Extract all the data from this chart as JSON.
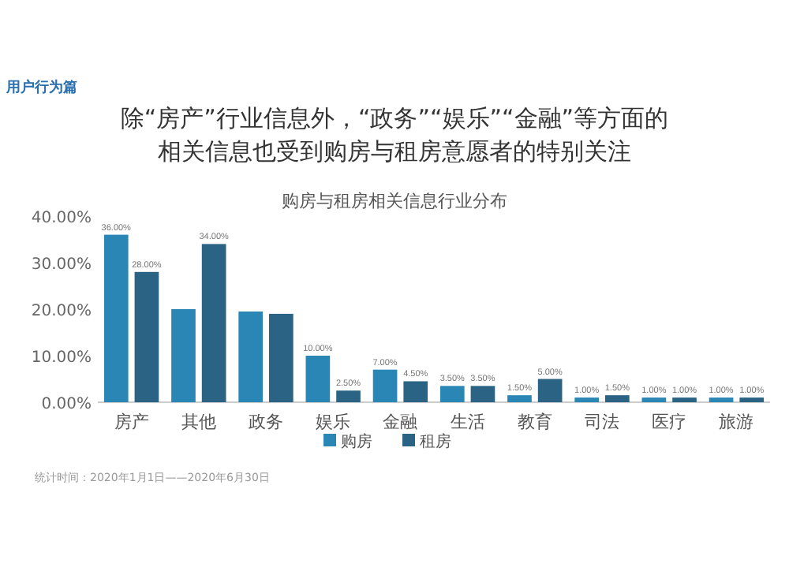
{
  "chart_data": {
    "type": "bar",
    "title": "除“房产”行业信息外，“政务”“娱乐”“金融”等方面的相关信息也受到购房与租房意愿者的特别关注",
    "subtitle": "购房与租房相关信息行业分布",
    "annotations": [
      "用户行为篇",
      "统计时间：2020年1月1日——2020年6月30日"
    ],
    "categories": [
      "房产",
      "其他",
      "政务",
      "娱乐",
      "金融",
      "生活",
      "教育",
      "司法",
      "医疗",
      "旅游"
    ],
    "series": [
      {
        "name": "购房",
        "color": "#2a86b5",
        "values": [
          36,
          20,
          19.5,
          10,
          7,
          3.5,
          1.5,
          1,
          1,
          1
        ],
        "value_labels": [
          "36.00%",
          null,
          null,
          "10.00%",
          "7.00%",
          "3.50%",
          "1.50%",
          "1.00%",
          "1.00%",
          "1.00%"
        ]
      },
      {
        "name": "租房",
        "color": "#2b6384",
        "values": [
          28,
          34,
          19,
          2.5,
          4.5,
          3.5,
          5,
          1.5,
          1,
          1
        ],
        "value_labels": [
          "28.00%",
          "34.00%",
          null,
          "2.50%",
          "4.50%",
          "3.50%",
          "5.00%",
          "1.50%",
          "1.00%",
          "1.00%"
        ]
      }
    ],
    "ylim": [
      0,
      40
    ],
    "yticks": [
      {
        "value": 0,
        "label": "0.00%"
      },
      {
        "value": 10,
        "label": "10.00%"
      },
      {
        "value": 20,
        "label": "20.00%"
      },
      {
        "value": 30,
        "label": "30.00%"
      },
      {
        "value": 40,
        "label": "40.00%"
      }
    ],
    "grid": false,
    "legend": "bottom"
  }
}
